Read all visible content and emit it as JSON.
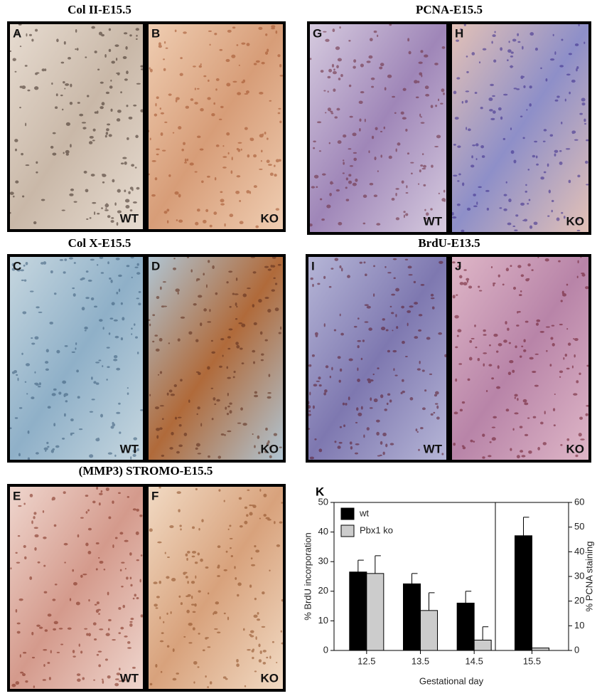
{
  "panels": [
    {
      "title": "Col II-E15.5",
      "images": [
        {
          "letter": "A",
          "label": "WT"
        },
        {
          "letter": "B",
          "label": "KO"
        }
      ]
    },
    {
      "title": "PCNA-E15.5",
      "images": [
        {
          "letter": "G",
          "label": "WT"
        },
        {
          "letter": "H",
          "label": "KO"
        }
      ]
    },
    {
      "title": "Col X-E15.5",
      "images": [
        {
          "letter": "C",
          "label": "WT"
        },
        {
          "letter": "D",
          "label": "KO"
        }
      ]
    },
    {
      "title": "BrdU-E13.5",
      "images": [
        {
          "letter": "I",
          "label": "WT"
        },
        {
          "letter": "J",
          "label": "KO"
        }
      ]
    },
    {
      "title": "(MMP3) STROMO-E15.5",
      "images": [
        {
          "letter": "E",
          "label": "WT"
        },
        {
          "letter": "F",
          "label": "KO"
        }
      ]
    }
  ],
  "chart_data": {
    "type": "bar",
    "panel_letter": "K",
    "x_label": "Gestational day",
    "y_label": "% BrdU incorporation",
    "y2_label": "% PCNA staining",
    "categories": [
      "12.5",
      "13.5",
      "14.5",
      "15.5"
    ],
    "series": [
      {
        "name": "wt",
        "color": "#000000",
        "values": [
          26.5,
          22.5,
          16,
          null
        ],
        "errors": [
          4,
          3.5,
          4,
          null
        ],
        "y2_values": [
          null,
          null,
          null,
          46.5
        ],
        "y2_errors": [
          null,
          null,
          null,
          7.5
        ]
      },
      {
        "name": "Pbx1 ko",
        "color": "#cccccc",
        "values": [
          26,
          13.5,
          3.5,
          null
        ],
        "errors": [
          6,
          6,
          4.5,
          null
        ],
        "y2_values": [
          null,
          null,
          null,
          1
        ],
        "y2_errors": [
          null,
          null,
          null,
          null
        ]
      }
    ],
    "ylim": [
      0,
      50
    ],
    "yticks": [
      0,
      10,
      20,
      30,
      40,
      50
    ],
    "y2lim": [
      0,
      60
    ],
    "y2ticks": [
      0,
      10,
      20,
      30,
      40,
      50,
      60
    ],
    "legend": "upper-left"
  }
}
